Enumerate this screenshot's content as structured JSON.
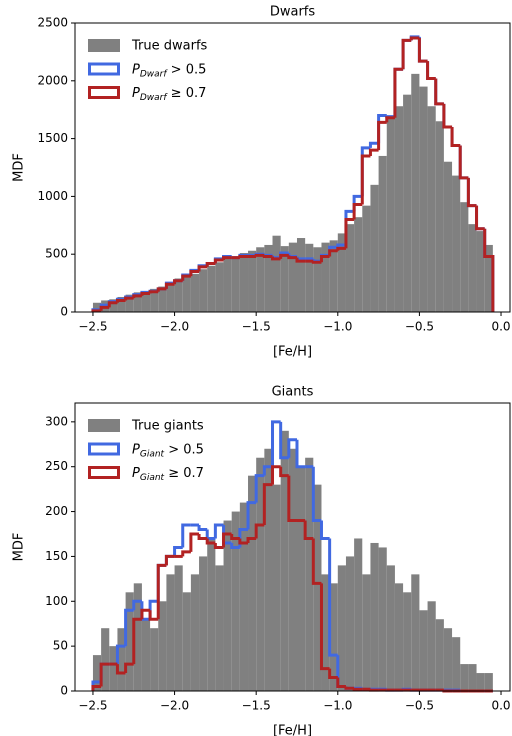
{
  "chart_data": [
    {
      "type": "histogram",
      "title": "Dwarfs",
      "xlabel": "[Fe/H]",
      "ylabel": "MDF",
      "bins": [
        -2.5,
        -2.45,
        -2.4,
        -2.35,
        -2.3,
        -2.25,
        -2.2,
        -2.15,
        -2.1,
        -2.05,
        -2.0,
        -1.95,
        -1.9,
        -1.85,
        -1.8,
        -1.75,
        -1.7,
        -1.65,
        -1.6,
        -1.55,
        -1.5,
        -1.45,
        -1.4,
        -1.35,
        -1.3,
        -1.25,
        -1.2,
        -1.15,
        -1.1,
        -1.05,
        -1.0,
        -0.95,
        -0.9,
        -0.85,
        -0.8,
        -0.75,
        -0.7,
        -0.65,
        -0.6,
        -0.55,
        -0.5,
        -0.45,
        -0.4,
        -0.35,
        -0.3,
        -0.25,
        -0.2,
        -0.15,
        -0.1,
        -0.05
      ],
      "series": [
        {
          "name": "True dwarfs",
          "color": "#808080",
          "style": "filled",
          "values": [
            80,
            100,
            110,
            130,
            150,
            170,
            180,
            200,
            220,
            260,
            290,
            310,
            330,
            370,
            400,
            430,
            470,
            480,
            510,
            530,
            560,
            580,
            660,
            570,
            600,
            640,
            590,
            560,
            600,
            620,
            680,
            760,
            820,
            920,
            1100,
            1350,
            1700,
            1780,
            1880,
            2060,
            1950,
            1780,
            1650,
            1300,
            1180,
            950,
            760,
            700,
            580
          ]
        },
        {
          "name": "P_Dwarf > 0.5",
          "color": "#4169e1",
          "style": "step",
          "values": [
            20,
            60,
            90,
            110,
            130,
            150,
            170,
            180,
            200,
            250,
            270,
            320,
            360,
            400,
            420,
            460,
            480,
            470,
            490,
            490,
            500,
            490,
            470,
            510,
            480,
            460,
            460,
            440,
            490,
            560,
            580,
            870,
            1000,
            1420,
            1460,
            1700,
            1690,
            2100,
            2350,
            2380,
            2170,
            2020,
            1800,
            1600,
            1440,
            1160,
            920,
            720,
            480
          ]
        },
        {
          "name": "P_Dwarf ≥ 0.7",
          "color": "#b22222",
          "style": "step",
          "values": [
            10,
            40,
            80,
            100,
            120,
            140,
            160,
            175,
            200,
            240,
            270,
            310,
            350,
            390,
            420,
            450,
            470,
            470,
            480,
            480,
            490,
            480,
            460,
            490,
            470,
            440,
            440,
            430,
            480,
            530,
            550,
            800,
            930,
            1350,
            1400,
            1640,
            1680,
            2100,
            2350,
            2370,
            2170,
            2020,
            1800,
            1600,
            1440,
            1160,
            920,
            720,
            480
          ]
        }
      ],
      "xlim": [
        -2.61,
        0.055
      ],
      "ylim": [
        0,
        2500
      ],
      "xticks": [
        {
          "value": -2.5,
          "label": "−2.5"
        },
        {
          "value": -2.0,
          "label": "−2.0"
        },
        {
          "value": -1.5,
          "label": "−1.5"
        },
        {
          "value": -1.0,
          "label": "−1.0"
        },
        {
          "value": -0.5,
          "label": "−0.5"
        },
        {
          "value": 0,
          "label": "0.0"
        }
      ],
      "yticks": [
        0,
        500,
        1000,
        1500,
        2000,
        2500
      ],
      "legend": "upper left"
    },
    {
      "type": "histogram",
      "title": "Giants",
      "xlabel": "[Fe/H]",
      "ylabel": "MDF",
      "bins": [
        -2.5,
        -2.45,
        -2.4,
        -2.35,
        -2.3,
        -2.25,
        -2.2,
        -2.15,
        -2.1,
        -2.05,
        -2.0,
        -1.95,
        -1.9,
        -1.85,
        -1.8,
        -1.75,
        -1.7,
        -1.65,
        -1.6,
        -1.55,
        -1.5,
        -1.45,
        -1.4,
        -1.35,
        -1.3,
        -1.25,
        -1.2,
        -1.15,
        -1.1,
        -1.05,
        -1.0,
        -0.95,
        -0.9,
        -0.85,
        -0.8,
        -0.75,
        -0.7,
        -0.65,
        -0.6,
        -0.55,
        -0.5,
        -0.45,
        -0.4,
        -0.35,
        -0.3,
        -0.25,
        -0.2,
        -0.15,
        -0.1,
        -0.05
      ],
      "series": [
        {
          "name": "True giants",
          "color": "#808080",
          "style": "filled",
          "values": [
            40,
            70,
            50,
            70,
            110,
            120,
            80,
            70,
            100,
            130,
            140,
            110,
            130,
            150,
            170,
            140,
            190,
            200,
            210,
            240,
            260,
            270,
            230,
            290,
            270,
            250,
            260,
            230,
            130,
            120,
            140,
            150,
            170,
            130,
            165,
            160,
            140,
            120,
            110,
            130,
            90,
            100,
            80,
            70,
            60,
            30,
            30,
            20,
            20
          ]
        },
        {
          "name": "P_Giant > 0.5",
          "color": "#4169e1",
          "style": "step",
          "values": [
            10,
            30,
            30,
            50,
            90,
            100,
            80,
            100,
            140,
            150,
            160,
            185,
            185,
            180,
            170,
            185,
            165,
            160,
            180,
            210,
            240,
            250,
            300,
            260,
            280,
            250,
            250,
            190,
            170,
            40,
            5,
            3,
            3,
            2,
            2,
            2,
            1,
            1,
            2,
            1,
            1,
            1,
            1,
            1,
            1,
            0,
            0,
            0,
            0
          ]
        },
        {
          "name": "P_Giant ≥ 0.7",
          "color": "#b22222",
          "style": "step",
          "values": [
            5,
            30,
            30,
            20,
            30,
            80,
            90,
            80,
            140,
            150,
            150,
            155,
            175,
            170,
            165,
            160,
            175,
            170,
            165,
            170,
            185,
            230,
            250,
            240,
            190,
            190,
            170,
            120,
            25,
            15,
            5,
            3,
            2,
            2,
            1,
            1,
            1,
            1,
            1,
            1,
            1,
            1,
            1,
            0,
            0,
            0,
            0,
            0,
            0
          ]
        }
      ],
      "xlim": [
        -2.61,
        0.055
      ],
      "ylim": [
        0,
        321
      ],
      "xticks": [
        {
          "value": -2.5,
          "label": "−2.5"
        },
        {
          "value": -2.0,
          "label": "−2.0"
        },
        {
          "value": -1.5,
          "label": "−1.5"
        },
        {
          "value": -1.0,
          "label": "−1.0"
        },
        {
          "value": -0.5,
          "label": "−0.5"
        },
        {
          "value": 0,
          "label": "0.0"
        }
      ],
      "yticks": [
        0,
        50,
        100,
        150,
        200,
        250,
        300
      ],
      "legend": "upper left"
    }
  ]
}
